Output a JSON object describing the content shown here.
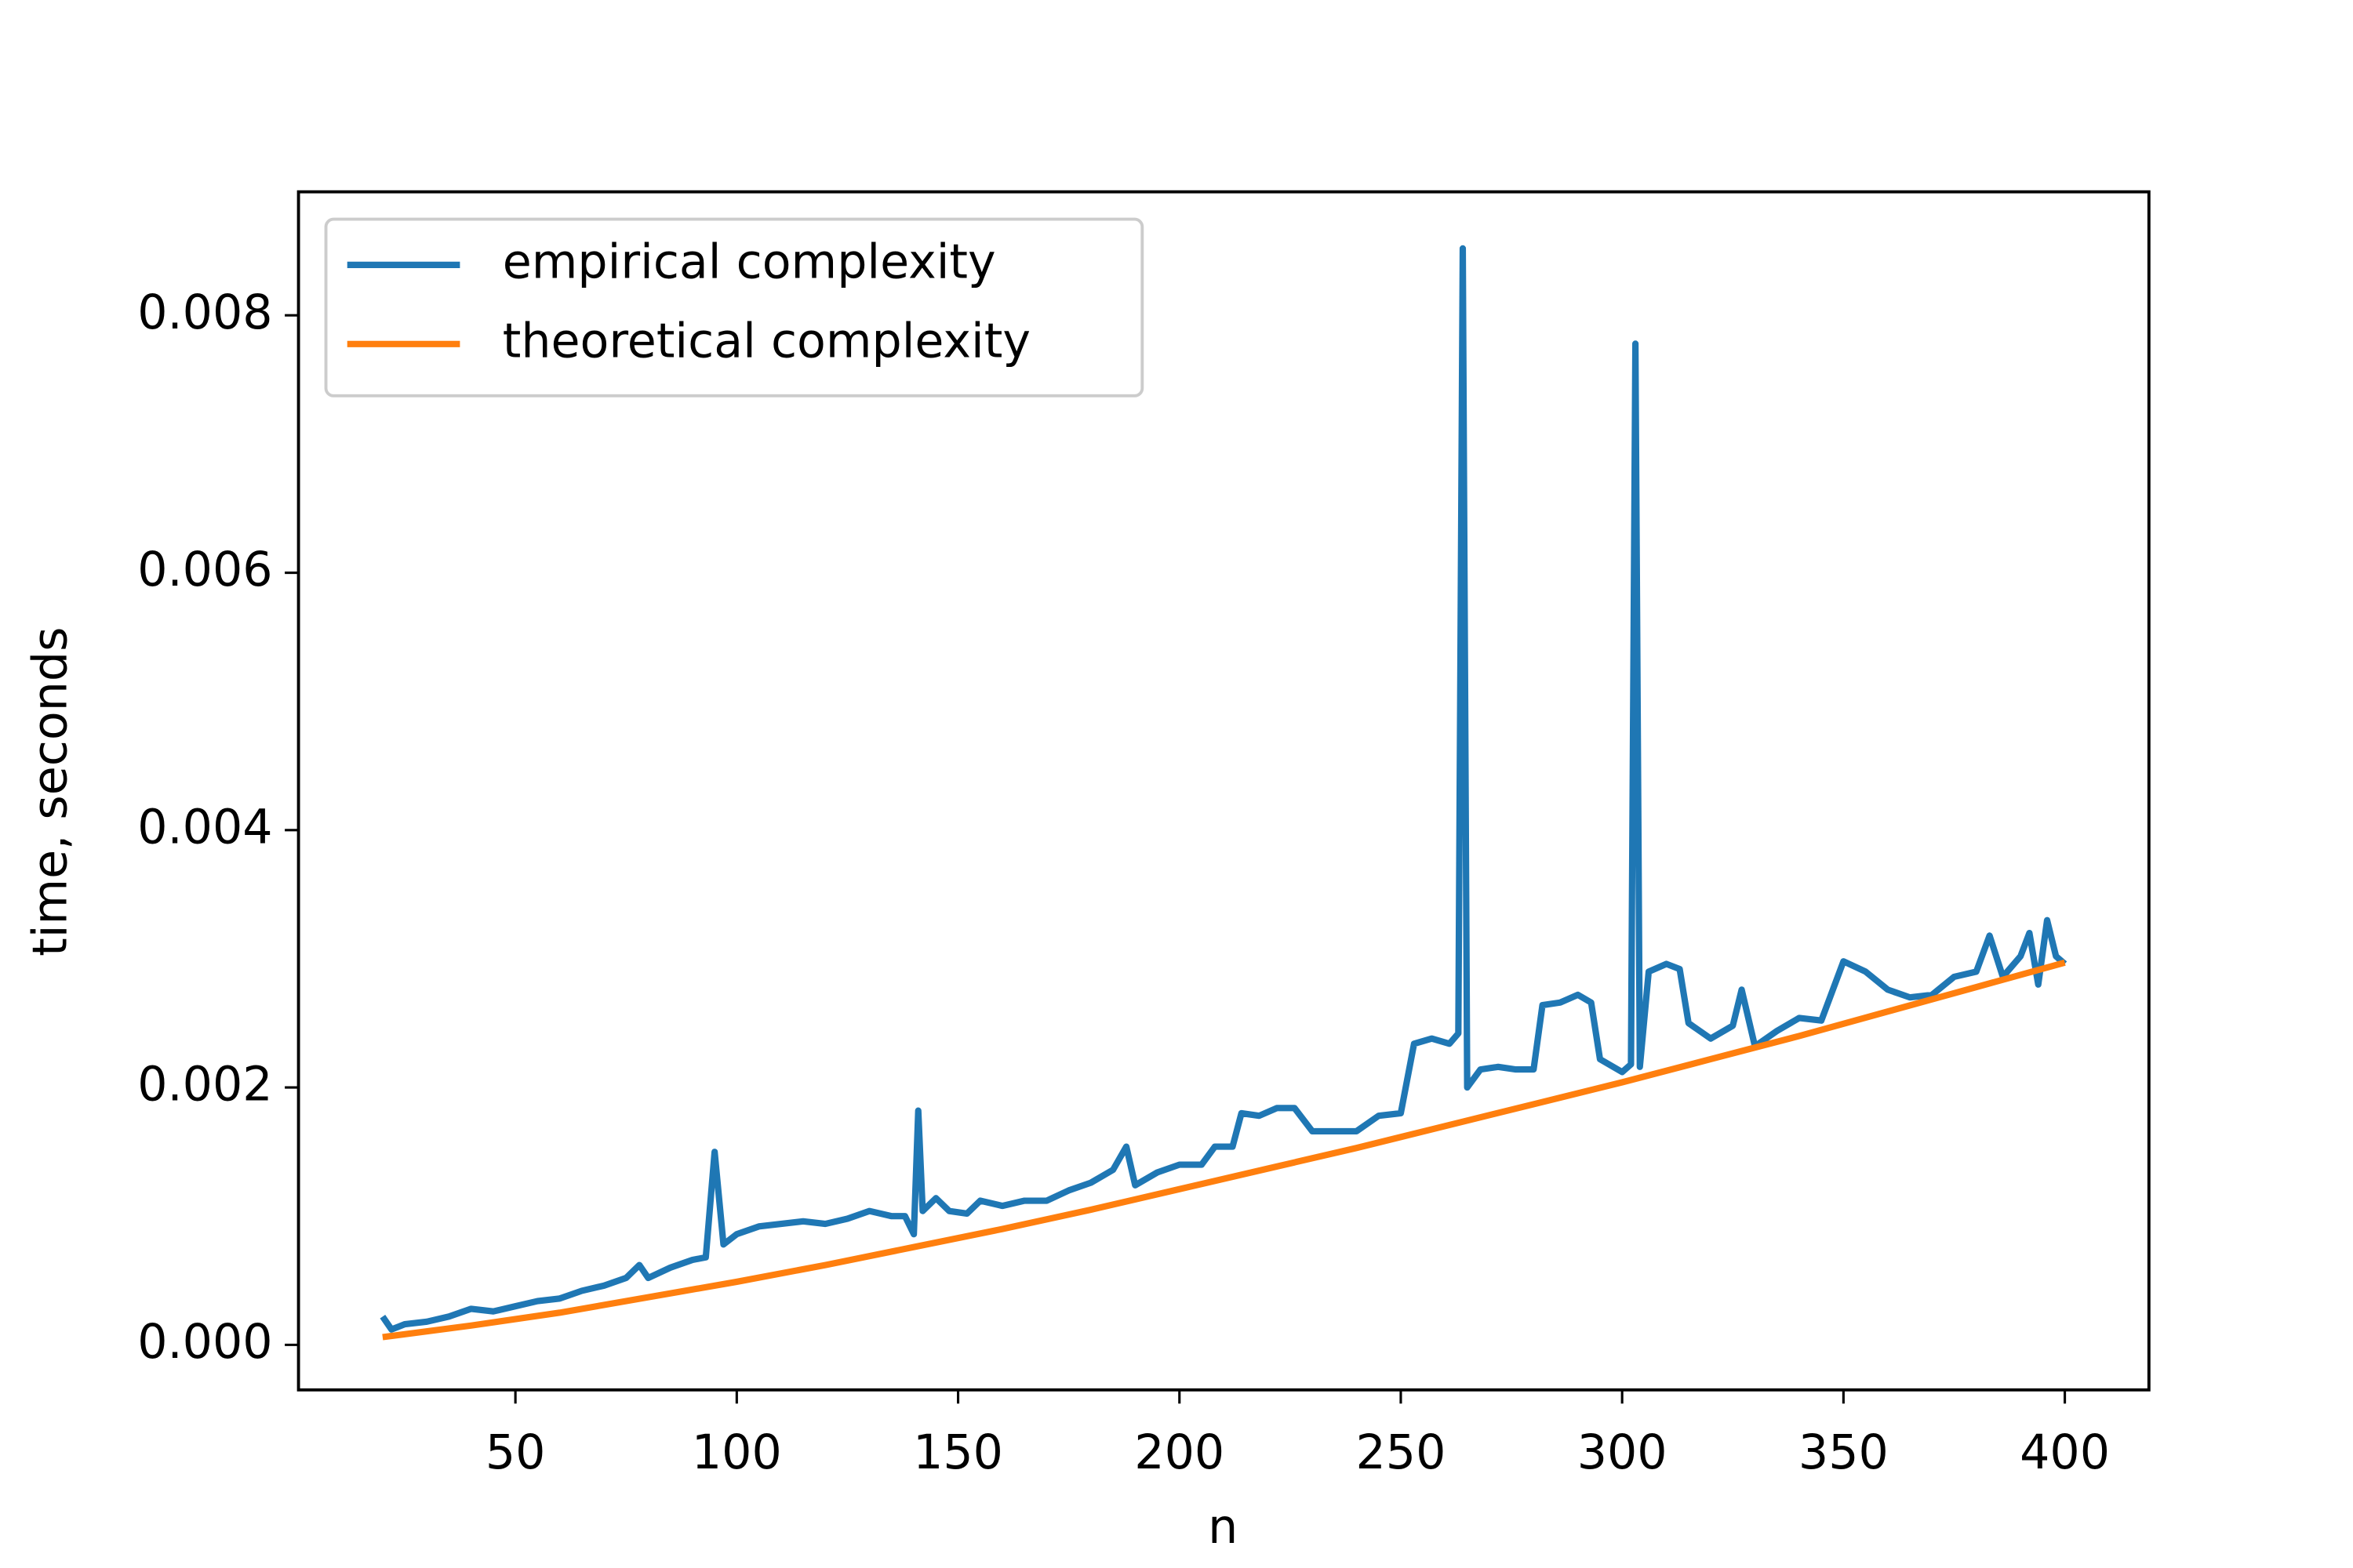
{
  "chart_data": {
    "type": "line",
    "xlabel": "n",
    "ylabel": "time, seconds",
    "xlim": [
      1,
      419
    ],
    "ylim": [
      -0.00035,
      0.00896
    ],
    "xticks": [
      50,
      100,
      150,
      200,
      250,
      300,
      350,
      400
    ],
    "yticks": [
      {
        "value": 0,
        "label": "0.000"
      },
      0.002,
      0.004,
      0.006,
      0.008
    ],
    "legend": "upper left",
    "series": [
      {
        "name": "empirical complexity",
        "color": "#1f77b4",
        "x": [
          20,
          22,
          25,
          30,
          35,
          40,
          45,
          50,
          55,
          60,
          65,
          70,
          75,
          78,
          80,
          85,
          90,
          93,
          95,
          97,
          100,
          105,
          110,
          115,
          120,
          125,
          130,
          135,
          138,
          140,
          141,
          142,
          145,
          148,
          152,
          155,
          160,
          165,
          170,
          175,
          180,
          185,
          188,
          190,
          195,
          200,
          205,
          208,
          212,
          214,
          218,
          222,
          226,
          230,
          235,
          240,
          245,
          250,
          253,
          257,
          261,
          263,
          264,
          265,
          268,
          272,
          276,
          280,
          282,
          286,
          290,
          293,
          295,
          300,
          302,
          303,
          304,
          306,
          310,
          313,
          315,
          320,
          325,
          327,
          330,
          335,
          340,
          345,
          350,
          355,
          360,
          365,
          370,
          375,
          380,
          383,
          386,
          390,
          392,
          394,
          396,
          398,
          400
        ],
        "values": [
          0.00022,
          0.00012,
          0.00016,
          0.00018,
          0.00022,
          0.00028,
          0.00026,
          0.0003,
          0.00034,
          0.00036,
          0.00042,
          0.00046,
          0.00052,
          0.00062,
          0.00052,
          0.0006,
          0.00066,
          0.00068,
          0.0015,
          0.00078,
          0.00086,
          0.00092,
          0.00094,
          0.00096,
          0.00094,
          0.00098,
          0.00104,
          0.001,
          0.001,
          0.00086,
          0.00182,
          0.00104,
          0.00114,
          0.00104,
          0.00102,
          0.00112,
          0.00108,
          0.00112,
          0.00112,
          0.0012,
          0.00126,
          0.00136,
          0.00154,
          0.00124,
          0.00134,
          0.0014,
          0.0014,
          0.00154,
          0.00154,
          0.0018,
          0.00178,
          0.00184,
          0.00184,
          0.00166,
          0.00166,
          0.00166,
          0.00178,
          0.0018,
          0.00234,
          0.00238,
          0.00234,
          0.00242,
          0.00852,
          0.002,
          0.00214,
          0.00216,
          0.00214,
          0.00214,
          0.00264,
          0.00266,
          0.00272,
          0.00266,
          0.00222,
          0.00212,
          0.00218,
          0.00778,
          0.00216,
          0.0029,
          0.00296,
          0.00292,
          0.0025,
          0.00238,
          0.00248,
          0.00276,
          0.00232,
          0.00244,
          0.00254,
          0.00252,
          0.00298,
          0.0029,
          0.00276,
          0.0027,
          0.00272,
          0.00286,
          0.0029,
          0.00318,
          0.00286,
          0.00302,
          0.0032,
          0.0028,
          0.0033,
          0.00302,
          0.00296
        ]
      },
      {
        "name": "theoretical complexity",
        "color": "#ff7f0e",
        "x": [
          20,
          40,
          60,
          80,
          100,
          120,
          140,
          160,
          180,
          200,
          220,
          240,
          260,
          280,
          300,
          320,
          340,
          360,
          380,
          400
        ],
        "values": [
          6e-05,
          0.00015,
          0.00025,
          0.00037,
          0.00049,
          0.00062,
          0.00076,
          0.0009,
          0.00105,
          0.00121,
          0.00137,
          0.00153,
          0.0017,
          0.00187,
          0.00204,
          0.00222,
          0.0024,
          0.00259,
          0.00278,
          0.00297
        ]
      }
    ]
  }
}
